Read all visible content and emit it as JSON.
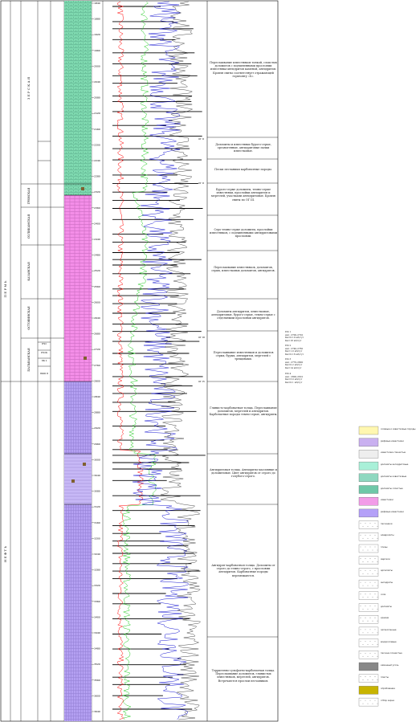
{
  "columns": {
    "system_lower": "Н Е Ф Т Ь",
    "system_upper": "П Е Р М Ь"
  },
  "stages": [
    {
      "id": "st1",
      "label": "З Е Р С К А Я"
    },
    {
      "id": "st2",
      "label": "ГРЕНСКАЯ"
    },
    {
      "id": "st3",
      "label": "СОЛИКАМСКАЯ"
    },
    {
      "id": "st4",
      "label": "КАЗАНСКАЯ"
    },
    {
      "id": "st5",
      "label": "ОСТОВИНСКАЯ"
    },
    {
      "id": "st6",
      "label": "ПАЛЬВАНСКАЯ"
    }
  ],
  "horizons": [
    "ПЧ2",
    "ПЧ2К",
    "ПК 2",
    "ПКШ П"
  ],
  "depths": [
    "1840",
    "1880",
    "1920",
    "1960",
    "2000",
    "2040",
    "2080",
    "2120",
    "2160",
    "2200",
    "2240",
    "2280",
    "2320",
    "2360",
    "2400",
    "2440",
    "2480",
    "2520",
    "2560",
    "2600",
    "2640",
    "2680",
    "2720",
    "2760",
    "2800",
    "2840",
    "2880",
    "2920",
    "2960",
    "3000",
    "3040",
    "3080",
    "3120",
    "3160",
    "3200",
    "3240",
    "3280",
    "3320",
    "3360",
    "3400",
    "3440",
    "3480",
    "3520",
    "3560",
    "3600",
    "3640",
    "3680"
  ],
  "markers": [
    "ОГ II",
    "ОГ II",
    "ОГ III",
    "ОГ IV"
  ],
  "descriptions": [
    {
      "id": "d1",
      "text": "Переслаивание известняков тонкой, слоистых доломитов с подчиненными прослоями известняка-ангидритов каменой, ангидритов. Кровля свиты соответствует отражающей горизонту «Х»."
    },
    {
      "id": "d2",
      "text": "Доломиты и известняки бурого-серые, органогенные, ангидритовые пачки известковые."
    },
    {
      "id": "d3",
      "text": "Пески песчаники карбонатные породы."
    },
    {
      "id": "d4",
      "text": "Бурого-серые доломиты, темно-серые известняки, прослойки ангидритов и мергелей, участками ангидритовые. Кровля свиты по ОГ III."
    },
    {
      "id": "d5",
      "text": "Серо-темно-серые доломиты, прослойки известняков, с подчиненными ангидритовыми прослоями."
    },
    {
      "id": "d6",
      "text": "Переслаивание известняков, доломитов, серых, известковых доломитов, ангидритов."
    },
    {
      "id": "d7",
      "text": "Доломиты ангидритов, известковые, ангидритовые, бурого-серые, темно-серые с отдельными прослоями ангидритов."
    },
    {
      "id": "d8",
      "text": "Переслаивание известняков и доломитов серых, бурых, ангидритов, мергелей с трещинами."
    },
    {
      "id": "d9",
      "text": "Глинисто-карбонатная толща. Переслаивание доломитов, мергелей и ангидритов. Карбонатные породы темно-серые, ангидриты."
    },
    {
      "id": "d10",
      "text": "Ангидритовая толща. Ангидриты массивные и доломитовые. Цвет ангидритов от серого до голубого-серого."
    },
    {
      "id": "d11",
      "text": "Ангидрит-карбонатная толща. Доломиты от серого до темно-серого, с прослоями ангидритов. Карбонатные породы перемежаются."
    },
    {
      "id": "d12",
      "text": "Терригенно-сульфатно-карбонатная толща. Переслаивание доломитов, глинистых известняков, мергелей, ангидритов. Встречаются прослои песчаников."
    }
  ],
  "core_notes": [
    {
      "id": "c1",
      "text": "ПК 1\nинт. 2700-2720\nКн=0.10 м3/сут\nКн=18 м3/сут"
    },
    {
      "id": "c2",
      "text": "ПК 2\nинт. 2740-2760\nКн=1.0 м3/сут\nКн=0.16 м3/сут"
    },
    {
      "id": "c3",
      "text": "ПК 3\nинт. 2770-2800\nКн=0.2 м3/сут\nКн=14 м3/сут"
    },
    {
      "id": "c4",
      "text": "ПК 4\nинт. 2800-2810\nКн=3.0 м3/сут\nКн=0.1 м3/сут"
    }
  ],
  "legend": [
    {
      "label": "солевые и известковые породы",
      "color": "#fff7b0"
    },
    {
      "label": "рифовые известняки",
      "color": "#c9b0f0"
    },
    {
      "label": "известково-глинистые",
      "color": "#eeeeee"
    },
    {
      "label": "доломиты ангидритовые",
      "color": "#a8f0d8"
    },
    {
      "label": "доломиты известковые",
      "color": "#8fd8c0"
    },
    {
      "label": "доломиты слоистые",
      "color": "#6fc8a8"
    },
    {
      "label": "известняки",
      "color": "#f29ce8"
    },
    {
      "label": "рифовые известняки",
      "color": "#b4a0f8"
    },
    {
      "label": "песчаники",
      "color": "#ffffff"
    },
    {
      "label": "алевролиты",
      "color": "#ffffff"
    },
    {
      "label": "глины",
      "color": "#ffffff"
    },
    {
      "label": "мергели",
      "color": "#ffffff"
    },
    {
      "label": "аргиллиты",
      "color": "#ffffff"
    },
    {
      "label": "ангидриты",
      "color": "#ffffff"
    },
    {
      "label": "соли",
      "color": "#ffffff"
    },
    {
      "label": "доломиты",
      "color": "#ffffff"
    },
    {
      "label": "кремни",
      "color": "#ffffff"
    },
    {
      "label": "органогенные",
      "color": "#ffffff"
    },
    {
      "label": "водорослевые",
      "color": "#ffffff"
    },
    {
      "label": "песчано-глинистые",
      "color": "#ffffff"
    },
    {
      "label": "каменный уголь",
      "color": "#888888"
    },
    {
      "label": "пласты",
      "color": "#ffffff"
    },
    {
      "label": "опробование",
      "color": "#c8b400"
    },
    {
      "label": "отбор керна",
      "color": "#ffffff"
    }
  ],
  "colors": {
    "green_litho": "#7fd9b0",
    "pink_litho": "#f48ee8",
    "purple_litho": "#b4a0f2",
    "curve_red": "#ff0000",
    "curve_green": "#22cc22",
    "curve_blue": "#0000cc",
    "curve_black": "#000000"
  }
}
